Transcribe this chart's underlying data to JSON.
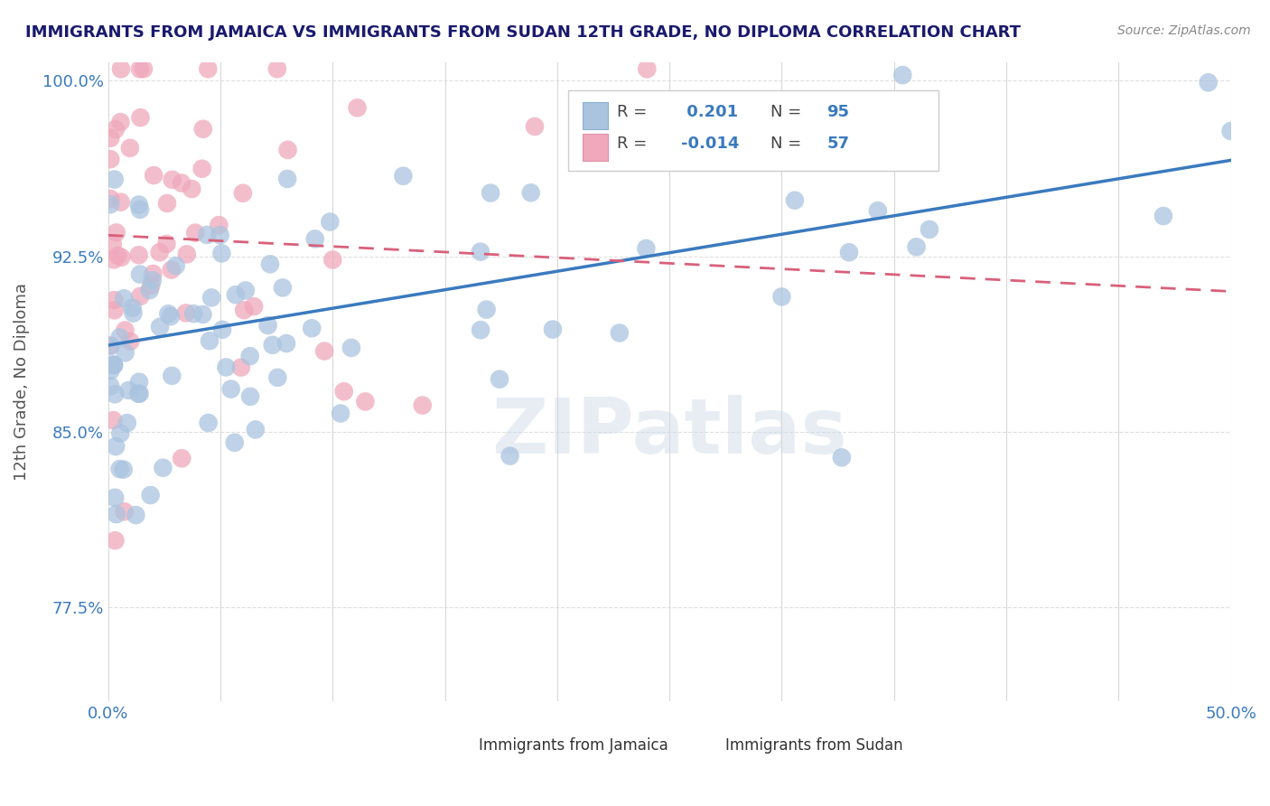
{
  "title": "IMMIGRANTS FROM JAMAICA VS IMMIGRANTS FROM SUDAN 12TH GRADE, NO DIPLOMA CORRELATION CHART",
  "source": "Source: ZipAtlas.com",
  "legend_label_jamaica": "Immigrants from Jamaica",
  "legend_label_sudan": "Immigrants from Sudan",
  "R_jamaica": 0.201,
  "N_jamaica": 95,
  "R_sudan": -0.014,
  "N_sudan": 57,
  "watermark": "ZIPatlas",
  "jamaica_color": "#aac4df",
  "sudan_color": "#f0a8bc",
  "jamaica_line_color": "#3a7abf",
  "sudan_line_color": "#d9607a",
  "title_color": "#1a1a6e",
  "axis_label_color": "#3a7abf",
  "ylabel_color": "#555555",
  "background_color": "#ffffff",
  "grid_color": "#d8d8d8",
  "xlim": [
    0.0,
    0.5
  ],
  "ylim": [
    0.735,
    1.008
  ],
  "x_ticks": [
    0.0,
    0.05,
    0.1,
    0.15,
    0.2,
    0.25,
    0.3,
    0.35,
    0.4,
    0.45,
    0.5
  ],
  "y_ticks": [
    0.775,
    0.85,
    0.925,
    1.0
  ],
  "jamaica_line_x0": 0.0,
  "jamaica_line_x1": 0.5,
  "jamaica_line_y0": 0.887,
  "jamaica_line_y1": 0.966,
  "sudan_line_x0": 0.0,
  "sudan_line_x1": 0.5,
  "sudan_line_y0": 0.934,
  "sudan_line_y1": 0.91
}
